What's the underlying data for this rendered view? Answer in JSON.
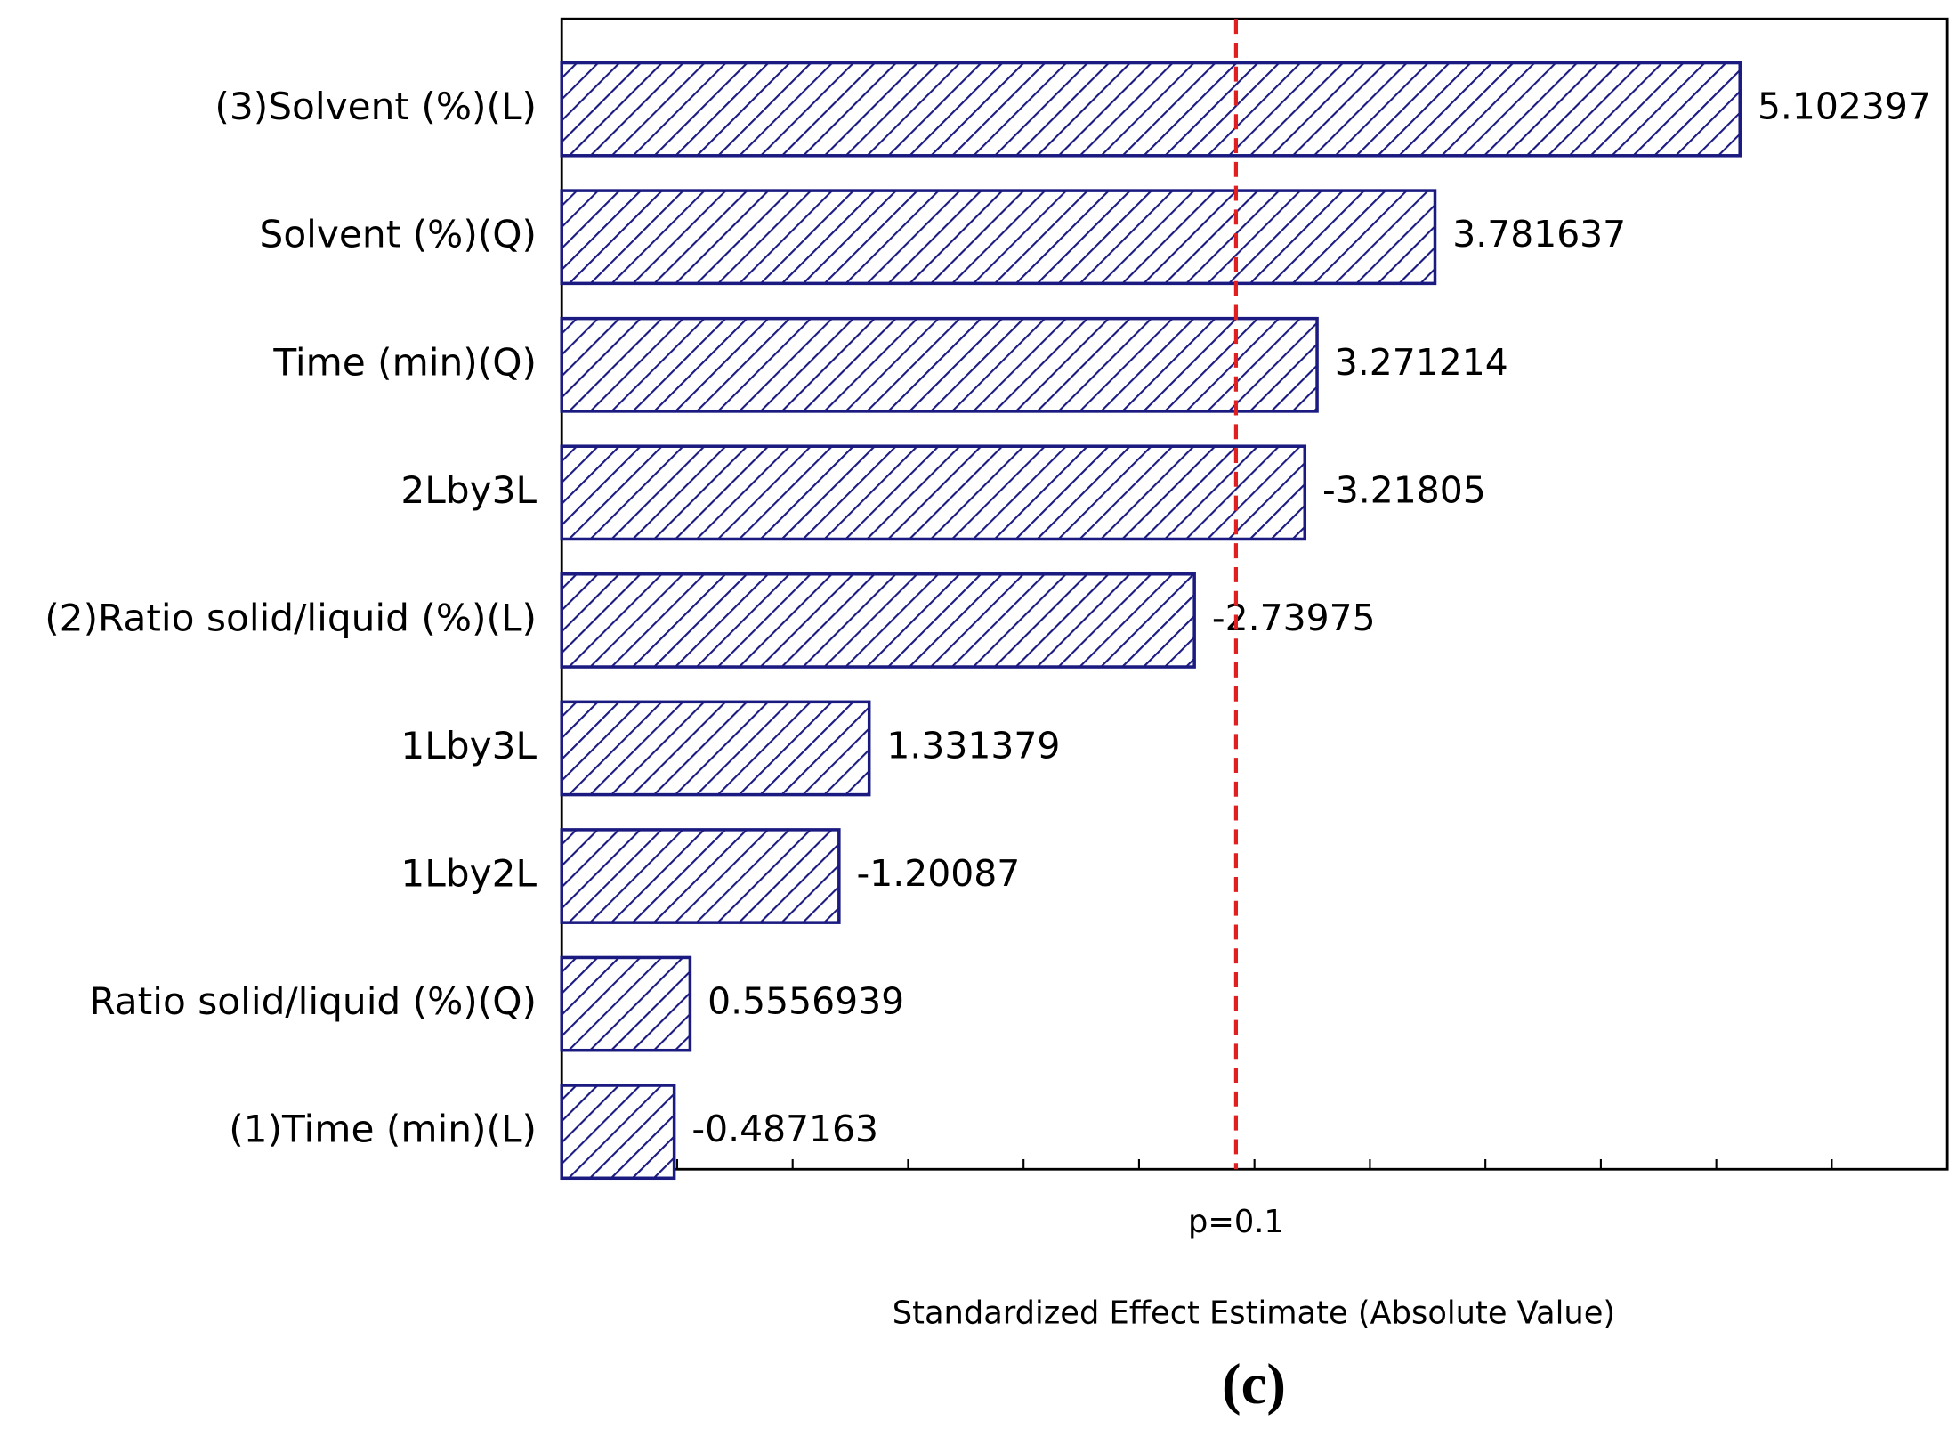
{
  "chart_data": {
    "type": "bar",
    "orientation": "horizontal",
    "categories": [
      "(3)Solvent (%)(L)",
      "Solvent (%)(Q)",
      "Time (min)(Q)",
      "2Lby3L",
      "(2)Ratio solid/liquid (%)(L)",
      "1Lby3L",
      "1Lby2L",
      "Ratio solid/liquid (%)(Q)",
      "(1)Time (min)(L)"
    ],
    "values": [
      5.102397,
      3.781637,
      3.271214,
      3.21805,
      2.73975,
      1.331379,
      1.20087,
      0.5556939,
      0.487163
    ],
    "value_labels": [
      "5.102397",
      "3.781637",
      "3.271214",
      "-3.21805",
      "-2.73975",
      "1.331379",
      "-1.20087",
      "0.5556939",
      "-0.487163"
    ],
    "color": "#1a1a80",
    "hatch": true,
    "xlabel": "Standardized Effect Estimate (Absolute Value)",
    "xlim": [
      0,
      6
    ],
    "xticks": [
      0,
      0.5,
      1,
      1.5,
      2,
      2.5,
      3,
      3.5,
      4,
      4.5,
      5,
      5.5,
      6
    ],
    "reference_line": {
      "value": 2.92,
      "label": "p=0.1",
      "color": "#e02020"
    },
    "caption": "(c)"
  }
}
